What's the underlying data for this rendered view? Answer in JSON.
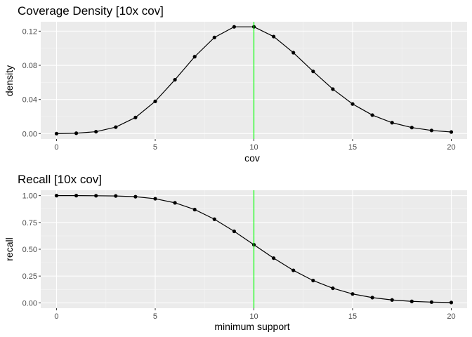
{
  "colors": {
    "panel_background": "#ebebeb",
    "grid_major": "#ffffff",
    "grid_minor": "#f5f5f5",
    "tick": "#333333",
    "tick_label": "#4d4d4d",
    "series": "#000000",
    "reference_line": "#00ff00"
  },
  "chart_data": [
    {
      "type": "line",
      "title": "Coverage Density [10x cov]",
      "xlabel": "cov",
      "ylabel": "density",
      "xlim": [
        -0.8,
        20.8
      ],
      "ylim": [
        -0.0063,
        0.131
      ],
      "x_ticks": [
        0,
        5,
        10,
        15,
        20
      ],
      "x_tick_labels": [
        "0",
        "5",
        "10",
        "15",
        "20"
      ],
      "y_ticks": [
        0,
        0.04,
        0.08,
        0.12
      ],
      "y_tick_labels": [
        "0.00",
        "0.04",
        "0.08",
        "0.12"
      ],
      "grid": true,
      "markers": true,
      "vline": 10,
      "series": [
        {
          "x": [
            0,
            1,
            2,
            3,
            4,
            5,
            6,
            7,
            8,
            9,
            10,
            11,
            12,
            13,
            14,
            15,
            16,
            17,
            18,
            19,
            20
          ],
          "values": [
            0.0,
            0.0005,
            0.0023,
            0.0076,
            0.0189,
            0.0378,
            0.0631,
            0.0901,
            0.1126,
            0.1251,
            0.1251,
            0.1137,
            0.0948,
            0.0729,
            0.0521,
            0.0347,
            0.0217,
            0.0128,
            0.0071,
            0.0037,
            0.0019
          ]
        }
      ]
    },
    {
      "type": "line",
      "title": "Recall [10x cov]",
      "xlabel": "minimum support",
      "ylabel": "recall",
      "xlim": [
        -0.8,
        20.8
      ],
      "ylim": [
        -0.05,
        1.05
      ],
      "x_ticks": [
        0,
        5,
        10,
        15,
        20
      ],
      "x_tick_labels": [
        "0",
        "5",
        "10",
        "15",
        "20"
      ],
      "y_ticks": [
        0,
        0.25,
        0.5,
        0.75,
        1.0
      ],
      "y_tick_labels": [
        "0.00",
        "0.25",
        "0.50",
        "0.75",
        "1.00"
      ],
      "grid": true,
      "markers": true,
      "vline": 10,
      "series": [
        {
          "x": [
            0,
            1,
            2,
            3,
            4,
            5,
            6,
            7,
            8,
            9,
            10,
            11,
            12,
            13,
            14,
            15,
            16,
            17,
            18,
            19,
            20
          ],
          "values": [
            1.0,
            1.0,
            0.999,
            0.997,
            0.99,
            0.971,
            0.933,
            0.87,
            0.78,
            0.667,
            0.542,
            0.417,
            0.303,
            0.208,
            0.136,
            0.083,
            0.049,
            0.027,
            0.014,
            0.007,
            0.003
          ]
        }
      ]
    }
  ]
}
